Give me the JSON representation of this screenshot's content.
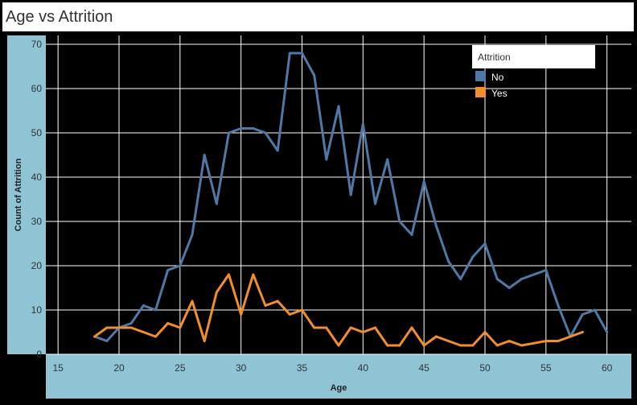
{
  "title": "Age vs Attrition",
  "colors": {
    "no": "#4e79a7",
    "yes": "#f28e2b",
    "axis_band": "#8fc4d4"
  },
  "chart_data": {
    "type": "line",
    "title": "Age vs Attrition",
    "xlabel": "Age",
    "ylabel": "Count of Attrition",
    "xlim": [
      14,
      62
    ],
    "ylim": [
      0,
      72
    ],
    "xticks": [
      15,
      20,
      25,
      30,
      35,
      40,
      45,
      50,
      55,
      60
    ],
    "yticks": [
      0,
      10,
      20,
      30,
      40,
      50,
      60,
      70
    ],
    "grid": true,
    "legend": {
      "title": "Attrition",
      "placement": "top-right"
    },
    "series": [
      {
        "name": "No",
        "color": "#4e79a7",
        "x": [
          18,
          19,
          20,
          21,
          22,
          23,
          24,
          25,
          26,
          27,
          28,
          29,
          30,
          31,
          32,
          33,
          34,
          35,
          36,
          37,
          38,
          39,
          40,
          41,
          42,
          43,
          44,
          45,
          46,
          47,
          48,
          49,
          50,
          51,
          52,
          53,
          54,
          55,
          56,
          57,
          58,
          59,
          60
        ],
        "values": [
          4,
          3,
          6,
          7,
          11,
          10,
          19,
          20,
          27,
          45,
          34,
          50,
          51,
          51,
          50,
          46,
          68,
          68,
          63,
          44,
          56,
          36,
          52,
          34,
          44,
          30,
          27,
          39,
          29,
          21,
          17,
          22,
          25,
          17,
          15,
          17,
          18,
          19,
          11,
          4,
          9,
          10,
          5
        ]
      },
      {
        "name": "Yes",
        "color": "#f28e2b",
        "x": [
          18,
          19,
          20,
          21,
          22,
          23,
          24,
          25,
          26,
          27,
          28,
          29,
          30,
          31,
          32,
          33,
          34,
          35,
          36,
          37,
          38,
          39,
          40,
          41,
          42,
          43,
          44,
          45,
          46,
          47,
          48,
          49,
          50,
          51,
          52,
          53,
          54,
          55,
          56,
          57,
          58
        ],
        "values": [
          4,
          6,
          6,
          6,
          5,
          4,
          7,
          6,
          12,
          3,
          14,
          18,
          9,
          18,
          11,
          12,
          9,
          10,
          6,
          6,
          2,
          6,
          5,
          6,
          2,
          2,
          6,
          2,
          4,
          3,
          2,
          2,
          5,
          2,
          3,
          2,
          2.5,
          3,
          3,
          4,
          5
        ]
      }
    ]
  }
}
